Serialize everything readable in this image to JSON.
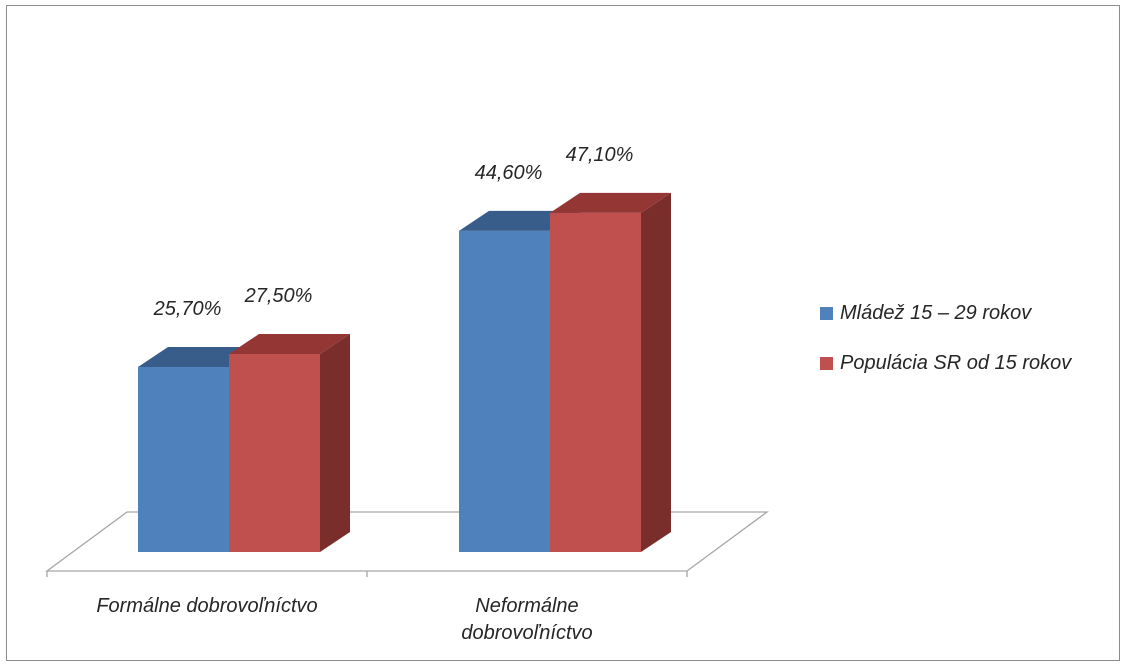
{
  "chart_data": {
    "type": "bar",
    "style": "3d-clustered-column",
    "categories": [
      "Formálne dobrovoľníctvo",
      "Neformálne dobrovoľníctvo"
    ],
    "category_label_lines": [
      [
        "Formálne dobrovoľníctvo"
      ],
      [
        "Neformálne",
        "dobrovoľníctvo"
      ]
    ],
    "series": [
      {
        "name": "Mládež 15 – 29 rokov",
        "values": [
          25.7,
          44.6
        ],
        "data_labels": [
          "25,70%",
          "44,60%"
        ],
        "colors": {
          "front": "#4f81bd",
          "top": "#385d8a",
          "side": "#2c4d75"
        }
      },
      {
        "name": "Populácia SR od 15 rokov",
        "values": [
          27.5,
          47.1
        ],
        "data_labels": [
          "27,50%",
          "47,10%"
        ],
        "colors": {
          "front": "#c0504d",
          "top": "#943634",
          "side": "#7a2e2c"
        }
      }
    ],
    "unit": "%",
    "ylim": [
      0,
      50
    ],
    "grid": false,
    "legend_position": "right",
    "floor_color": "#a6a6a6"
  }
}
